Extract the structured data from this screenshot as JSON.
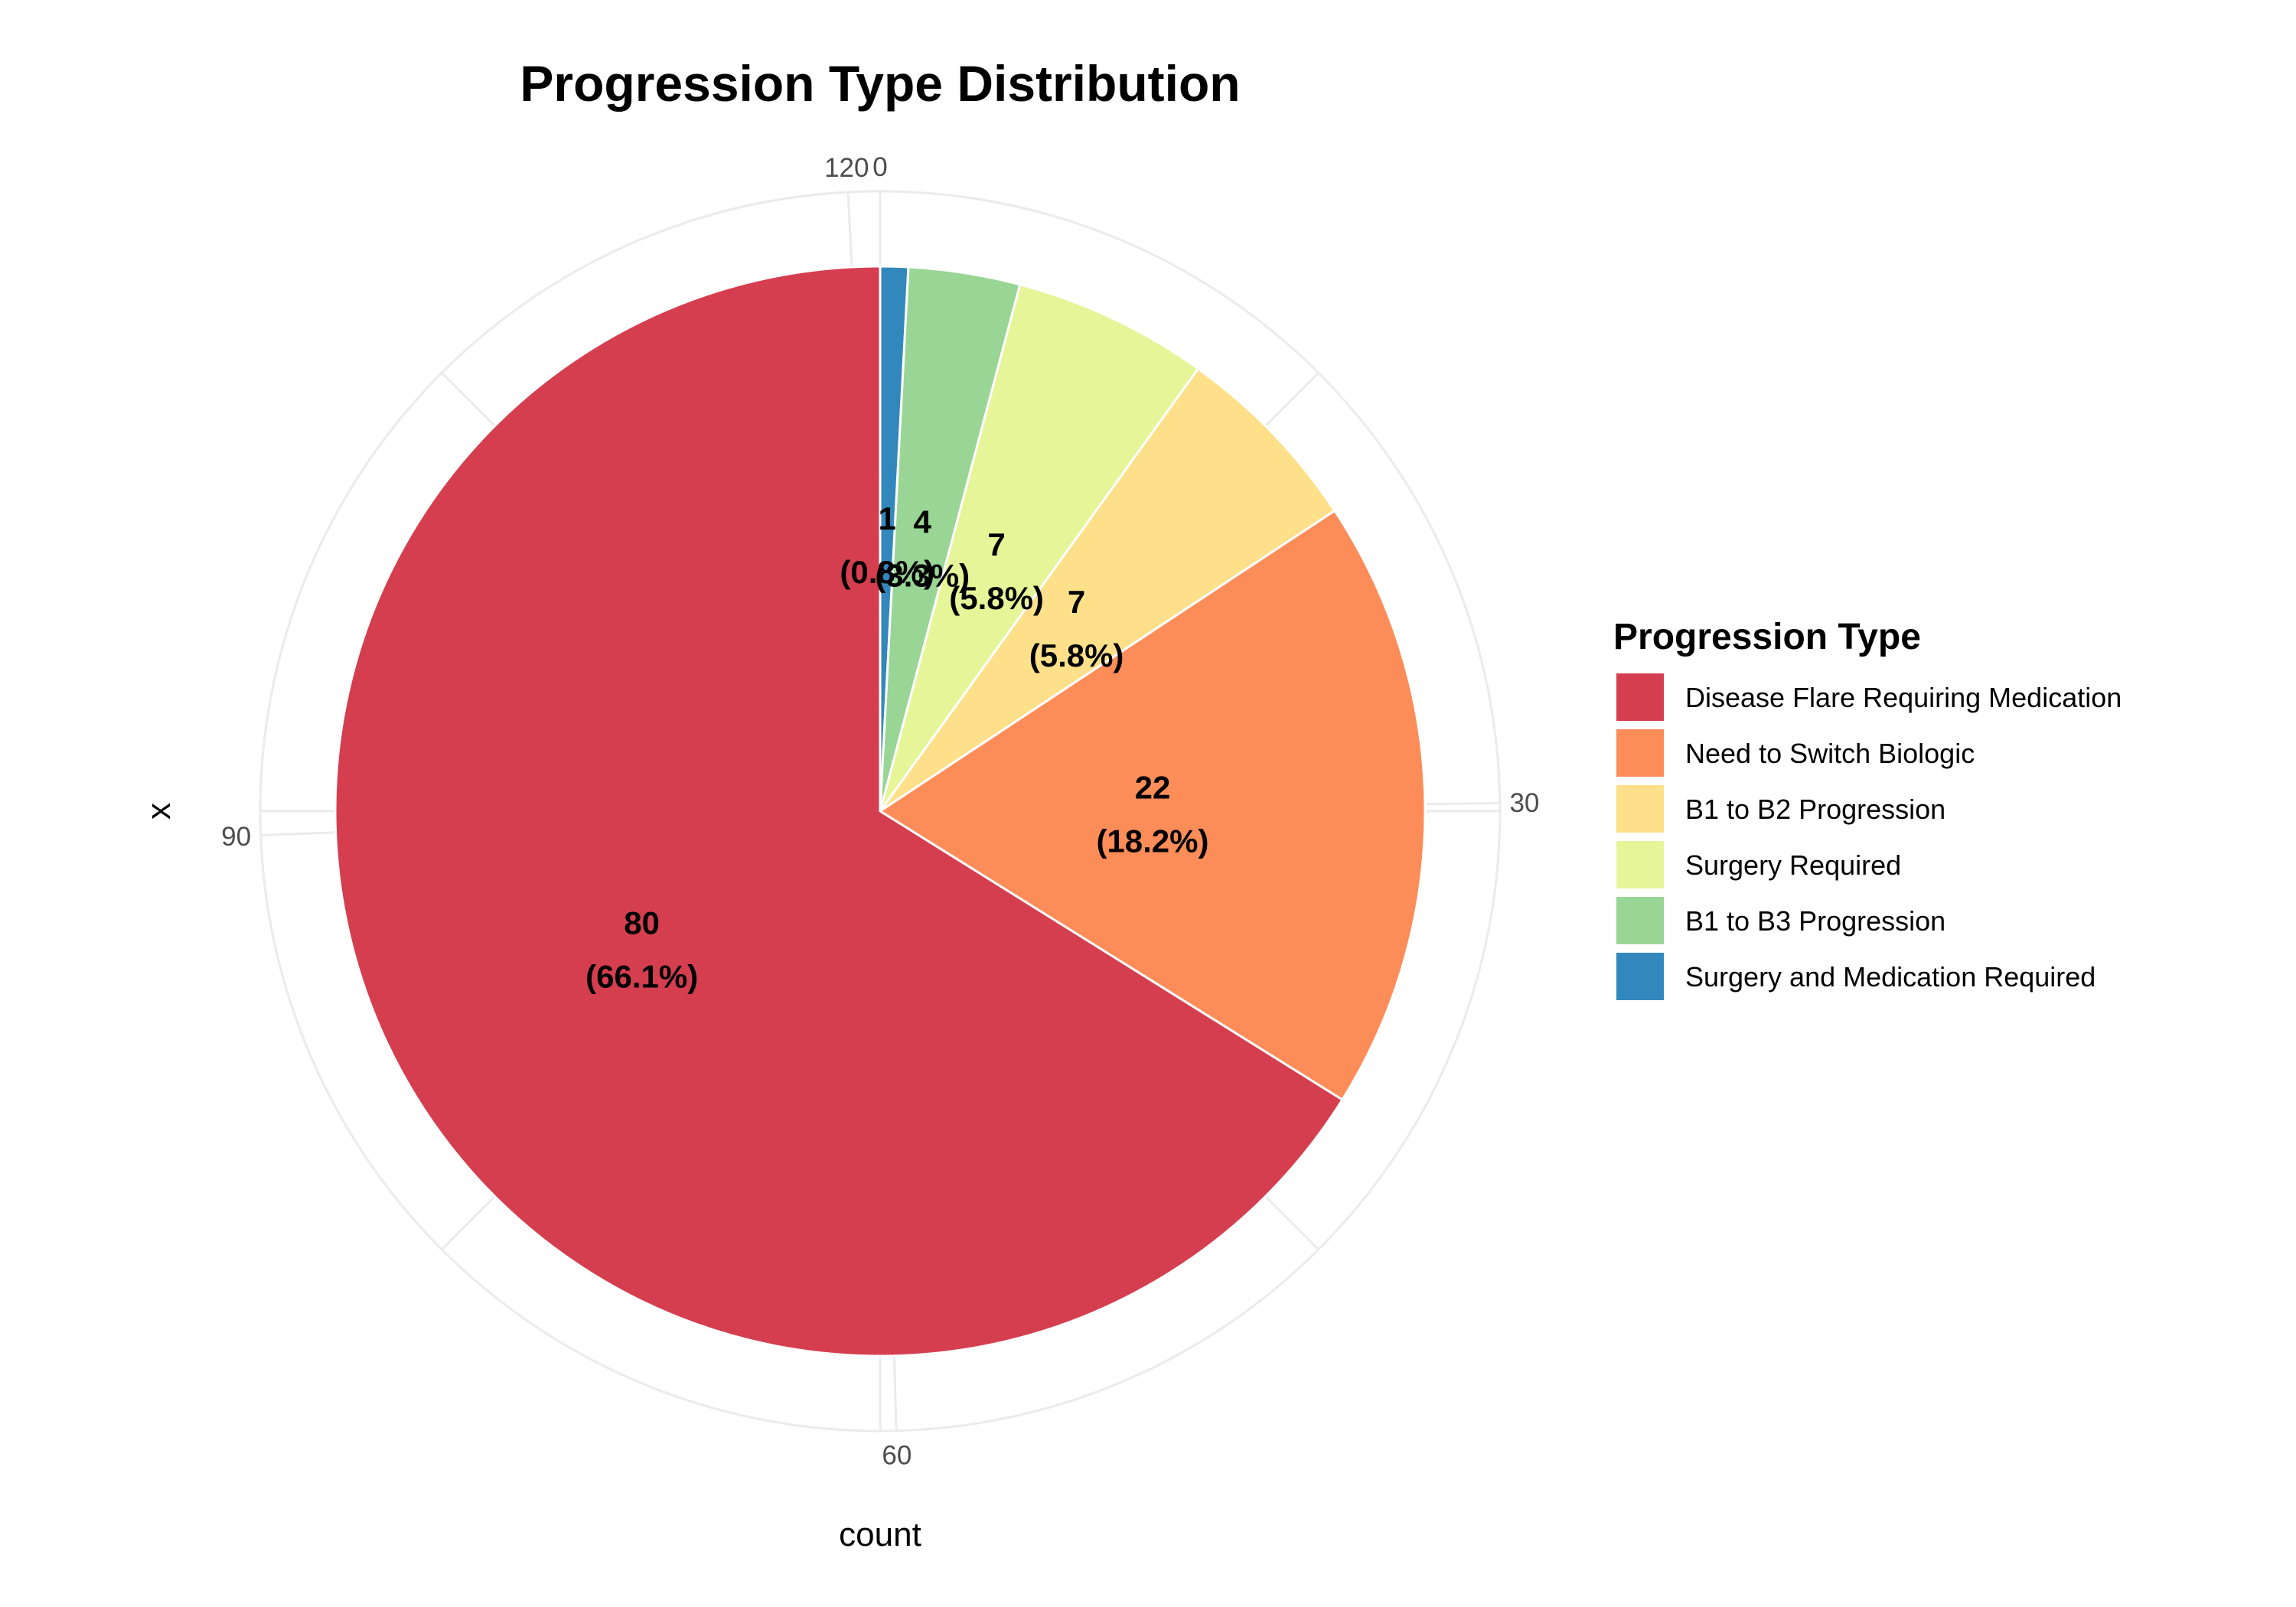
{
  "chart_data": {
    "type": "pie",
    "title": "Progression Type Distribution",
    "xlabel": "count",
    "ylabel": "x",
    "theta_ticks": [
      "0",
      "30",
      "60",
      "90",
      "120"
    ],
    "theta_max": 121,
    "grid": true,
    "legend_position": "right",
    "legend_title": "Progression Type",
    "slices": [
      {
        "label": "Disease Flare Requiring Medication",
        "value": 80,
        "percent": "66.1%",
        "color": "#D53E4F"
      },
      {
        "label": "Need to Switch Biologic",
        "value": 22,
        "percent": "18.2%",
        "color": "#FC8D59"
      },
      {
        "label": "B1 to B2 Progression",
        "value": 7,
        "percent": "5.8%",
        "color": "#FEE08B"
      },
      {
        "label": "Surgery Required",
        "value": 7,
        "percent": "5.8%",
        "color": "#E6F598"
      },
      {
        "label": "B1 to B3 Progression",
        "value": 4,
        "percent": "3.3%",
        "color": "#99D594"
      },
      {
        "label": "Surgery and Medication Required",
        "value": 1,
        "percent": "0.8%",
        "color": "#3288BD"
      }
    ]
  }
}
